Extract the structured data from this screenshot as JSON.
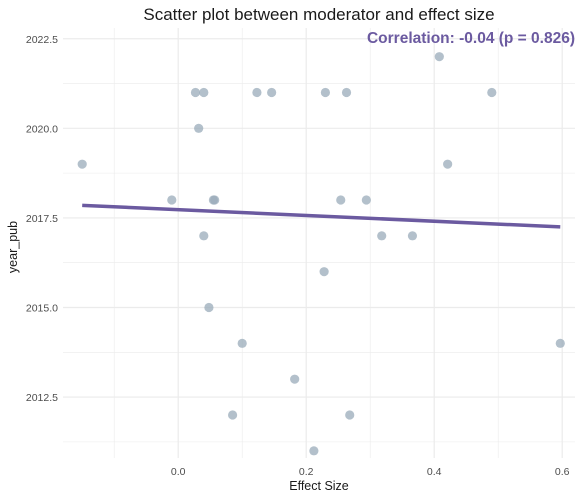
{
  "chart_data": {
    "type": "scatter",
    "title": "Scatter plot between moderator and effect size",
    "annotation": "Correlation: -0.04 (p = 0.826)",
    "xlabel": "Effect Size",
    "ylabel": "year_pub",
    "xlim": [
      -0.18,
      0.62
    ],
    "ylim": [
      2010.8,
      2022.8
    ],
    "x_ticks": [
      0.0,
      0.2,
      0.4,
      0.6
    ],
    "x_tick_labels": [
      "0.0",
      "0.2",
      "0.4",
      "0.6"
    ],
    "y_ticks": [
      2012.5,
      2015.0,
      2017.5,
      2020.0,
      2022.5
    ],
    "y_tick_labels": [
      "2012.5",
      "2015.0",
      "2017.5",
      "2020.0",
      "2022.5"
    ],
    "grid": true,
    "points": [
      {
        "x": -0.15,
        "y": 2019
      },
      {
        "x": -0.01,
        "y": 2018
      },
      {
        "x": 0.027,
        "y": 2021
      },
      {
        "x": 0.04,
        "y": 2021
      },
      {
        "x": 0.032,
        "y": 2020
      },
      {
        "x": 0.04,
        "y": 2017
      },
      {
        "x": 0.048,
        "y": 2015
      },
      {
        "x": 0.055,
        "y": 2018
      },
      {
        "x": 0.057,
        "y": 2018
      },
      {
        "x": 0.1,
        "y": 2014
      },
      {
        "x": 0.085,
        "y": 2012
      },
      {
        "x": 0.123,
        "y": 2021
      },
      {
        "x": 0.146,
        "y": 2021
      },
      {
        "x": 0.182,
        "y": 2013
      },
      {
        "x": 0.212,
        "y": 2011
      },
      {
        "x": 0.228,
        "y": 2016
      },
      {
        "x": 0.23,
        "y": 2021
      },
      {
        "x": 0.254,
        "y": 2018
      },
      {
        "x": 0.263,
        "y": 2021
      },
      {
        "x": 0.268,
        "y": 2012
      },
      {
        "x": 0.294,
        "y": 2018
      },
      {
        "x": 0.318,
        "y": 2017
      },
      {
        "x": 0.366,
        "y": 2017
      },
      {
        "x": 0.408,
        "y": 2022
      },
      {
        "x": 0.421,
        "y": 2019
      },
      {
        "x": 0.49,
        "y": 2021
      },
      {
        "x": 0.597,
        "y": 2014
      }
    ],
    "trend_line": {
      "x": [
        -0.15,
        0.597
      ],
      "y": [
        2017.85,
        2017.25
      ]
    },
    "colors": {
      "points": "#9aabba",
      "trend_line": "#6b5aa0",
      "annotation": "#6b5aa0",
      "grid": "#ebebeb"
    }
  }
}
